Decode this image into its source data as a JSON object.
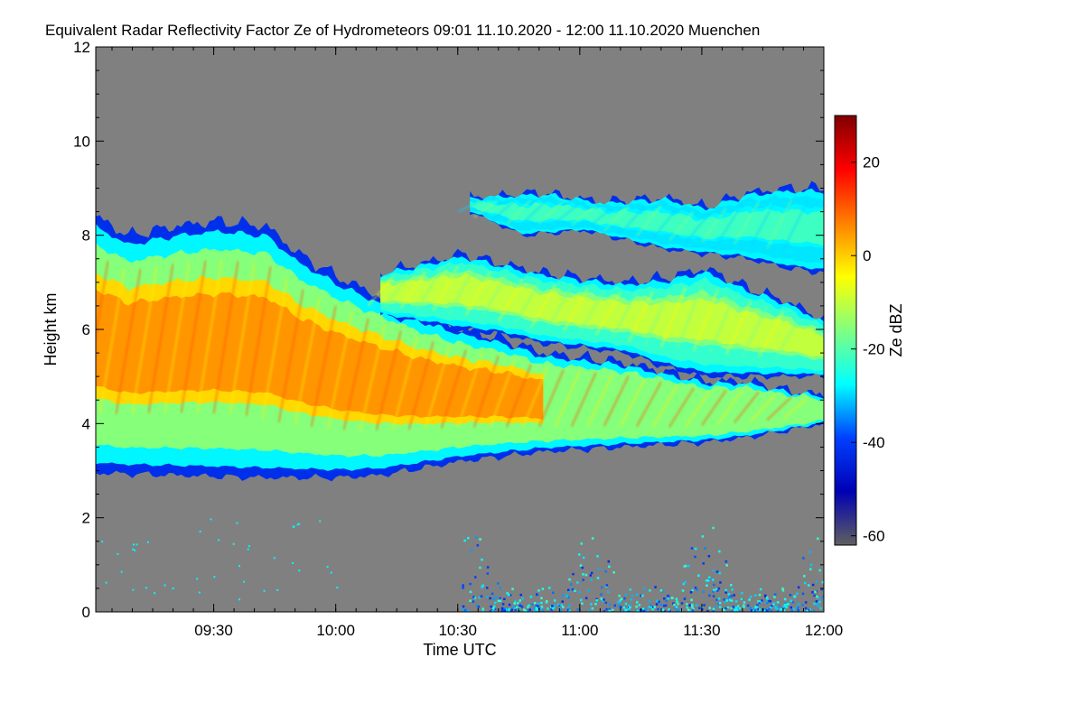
{
  "chart_data": {
    "type": "heatmap",
    "title": "Equivalent Radar Reflectivity Factor Ze of Hydrometeors   09:01 11.10.2020 - 12:00 11.10.2020 Muenchen",
    "xlabel": "Time UTC",
    "ylabel": "Height km",
    "colorbar_label": "Ze dBZ",
    "x_unit": "minutes since 09:01 UTC",
    "xlim": [
      0,
      179
    ],
    "ylim": [
      0,
      12
    ],
    "x_ticks": [
      {
        "label": "09:30",
        "value": 29
      },
      {
        "label": "10:00",
        "value": 59
      },
      {
        "label": "10:30",
        "value": 89
      },
      {
        "label": "11:00",
        "value": 119
      },
      {
        "label": "11:30",
        "value": 149
      },
      {
        "label": "12:00",
        "value": 179
      }
    ],
    "y_ticks": [
      0,
      2,
      4,
      6,
      8,
      10,
      12
    ],
    "colorbar_range": [
      -62,
      30
    ],
    "colorbar_ticks": [
      20,
      0,
      -20,
      -40,
      -60
    ],
    "background_color": "#808080",
    "colormap": [
      "#606060",
      "#0000b4",
      "#0040ff",
      "#00ffff",
      "#80ff80",
      "#ffff00",
      "#ff8000",
      "#ff0000",
      "#800000"
    ],
    "layers": [
      {
        "name": "main cloud",
        "top": [
          [
            0,
            8.4
          ],
          [
            8,
            8.0
          ],
          [
            20,
            8.2
          ],
          [
            30,
            8.3
          ],
          [
            42,
            8.2
          ],
          [
            50,
            7.6
          ],
          [
            60,
            7.1
          ],
          [
            70,
            6.7
          ],
          [
            80,
            6.3
          ],
          [
            90,
            6.0
          ],
          [
            100,
            5.8
          ],
          [
            110,
            5.5
          ],
          [
            120,
            5.4
          ],
          [
            130,
            5.3
          ],
          [
            140,
            5.1
          ],
          [
            150,
            4.9
          ],
          [
            160,
            4.9
          ],
          [
            170,
            4.7
          ],
          [
            179,
            4.6
          ]
        ],
        "bottom": [
          [
            0,
            2.95
          ],
          [
            20,
            2.9
          ],
          [
            40,
            2.85
          ],
          [
            60,
            2.85
          ],
          [
            70,
            2.9
          ],
          [
            80,
            3.05
          ],
          [
            90,
            3.2
          ],
          [
            100,
            3.3
          ],
          [
            110,
            3.4
          ],
          [
            120,
            3.45
          ],
          [
            130,
            3.5
          ],
          [
            140,
            3.55
          ],
          [
            150,
            3.6
          ],
          [
            160,
            3.7
          ],
          [
            170,
            3.85
          ],
          [
            179,
            4.0
          ]
        ],
        "core_dbz": 5
      },
      {
        "name": "mid-level cloud band",
        "top": [
          [
            70,
            7.2
          ],
          [
            90,
            7.6
          ],
          [
            100,
            7.4
          ],
          [
            110,
            7.2
          ],
          [
            120,
            7.1
          ],
          [
            130,
            7.0
          ],
          [
            140,
            7.1
          ],
          [
            150,
            7.3
          ],
          [
            160,
            6.9
          ],
          [
            170,
            6.6
          ],
          [
            179,
            6.2
          ]
        ],
        "bottom": [
          [
            70,
            6.3
          ],
          [
            90,
            6.0
          ],
          [
            100,
            5.9
          ],
          [
            110,
            5.7
          ],
          [
            120,
            5.6
          ],
          [
            130,
            5.5
          ],
          [
            140,
            5.2
          ],
          [
            150,
            5.0
          ],
          [
            160,
            5.0
          ],
          [
            170,
            5.0
          ],
          [
            179,
            5.0
          ]
        ],
        "core_dbz": -10
      },
      {
        "name": "upper cloud layer",
        "top": [
          [
            92,
            8.8
          ],
          [
            110,
            8.9
          ],
          [
            125,
            8.7
          ],
          [
            140,
            8.8
          ],
          [
            150,
            8.6
          ],
          [
            160,
            8.9
          ],
          [
            170,
            9.0
          ],
          [
            179,
            9.0
          ]
        ],
        "bottom": [
          [
            92,
            8.5
          ],
          [
            105,
            8.0
          ],
          [
            120,
            8.1
          ],
          [
            130,
            7.9
          ],
          [
            140,
            7.7
          ],
          [
            150,
            7.6
          ],
          [
            160,
            7.5
          ],
          [
            170,
            7.3
          ],
          [
            179,
            7.2
          ]
        ],
        "core_dbz": -22
      }
    ],
    "low_echoes": {
      "x_range": [
        90,
        179
      ],
      "max_height": 1.6,
      "typical_dbz": -30
    }
  }
}
